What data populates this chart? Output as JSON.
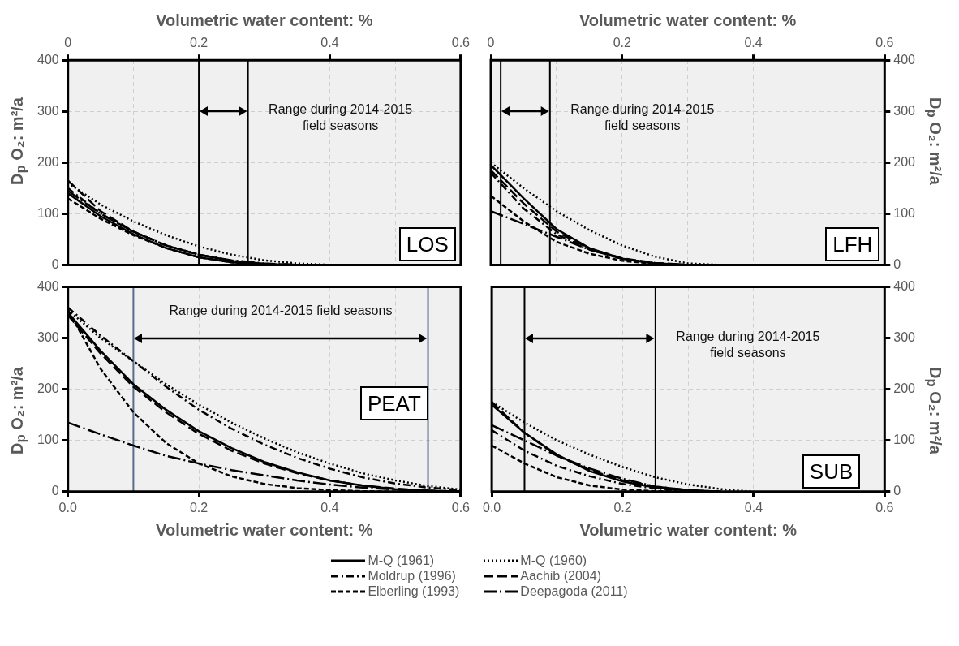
{
  "chart_data": [
    {
      "type": "line",
      "title": "LOS",
      "xlabel": "Volumetric water content: %",
      "ylabel": "D$_{p}$ O₂: m²/a",
      "x": [
        0,
        0.05,
        0.1,
        0.15,
        0.2,
        0.25,
        0.3,
        0.35,
        0.4
      ],
      "xlim": [
        0,
        0.6
      ],
      "xticks": [
        0,
        {
          "value": 0.1,
          "label": null
        },
        0.2,
        {
          "value": 0.3,
          "label": null
        },
        0.4,
        {
          "value": 0.5,
          "label": null
        },
        0.6
      ],
      "ylim": [
        0,
        400
      ],
      "yticks": [
        0,
        100,
        200,
        300,
        400
      ],
      "grid": true,
      "legend": "bottom",
      "ref_lines": [
        {
          "axis": "x",
          "value": 0.2,
          "color": "#000000"
        },
        {
          "axis": "x",
          "value": 0.275,
          "color": "#000000"
        }
      ],
      "annotations": [
        "Range during 2014-2015 field seasons"
      ],
      "series": [
        {
          "name": "M-Q (1961)",
          "color": "#000000",
          "line_style": "solid",
          "values": [
            140,
            95,
            60,
            33,
            15,
            5,
            1,
            0,
            null
          ]
        },
        {
          "name": "M-Q (1960)",
          "color": "#000000",
          "line_style": "dotted",
          "values": [
            160,
            118,
            85,
            58,
            36,
            20,
            9,
            3,
            0
          ]
        },
        {
          "name": "Moldrup (1996)",
          "color": "#000000",
          "line_style": "dashdot",
          "values": [
            150,
            100,
            65,
            38,
            20,
            8,
            2,
            0,
            null
          ]
        },
        {
          "name": "Aachib (2004)",
          "color": "#000000",
          "line_style": "longdash",
          "values": [
            165,
            105,
            65,
            38,
            20,
            8,
            2,
            0,
            null
          ]
        },
        {
          "name": "Elberling (1993)",
          "color": "#000000",
          "line_style": "dashed",
          "values": [
            130,
            90,
            58,
            33,
            15,
            5,
            1,
            0,
            null
          ]
        },
        {
          "name": "Deepagoda (2011)",
          "color": "#000000",
          "line_style": "longdashdot",
          "values": [
            145,
            100,
            65,
            38,
            20,
            9,
            3,
            0,
            null
          ]
        }
      ]
    },
    {
      "type": "line",
      "title": "LFH",
      "xlabel": "Volumetric water content: %",
      "ylabel": "D$_{p}$ O₂: m²/a",
      "x": [
        0,
        0.05,
        0.1,
        0.15,
        0.2,
        0.25,
        0.3,
        0.35
      ],
      "xlim": [
        0,
        0.6
      ],
      "xticks": [
        0,
        {
          "value": 0.1,
          "label": null
        },
        0.2,
        {
          "value": 0.3,
          "label": null
        },
        0.4,
        {
          "value": 0.5,
          "label": null
        },
        0.6
      ],
      "ylim": [
        0,
        400
      ],
      "yticks": [
        0,
        100,
        200,
        300,
        400
      ],
      "grid": true,
      "ref_lines": [
        {
          "axis": "x",
          "value": 0.015,
          "color": "#000000"
        },
        {
          "axis": "x",
          "value": 0.09,
          "color": "#000000"
        }
      ],
      "annotations": [
        "Range during 2014-2015 field seasons"
      ],
      "series": [
        {
          "color": "#000000",
          "line_style": "solid",
          "values": [
            195,
            130,
            70,
            33,
            12,
            3,
            0,
            null
          ]
        },
        {
          "color": "#000000",
          "line_style": "dotted",
          "values": [
            200,
            150,
            105,
            68,
            38,
            16,
            3,
            0
          ]
        },
        {
          "color": "#000000",
          "line_style": "dashdot",
          "values": [
            180,
            110,
            60,
            30,
            12,
            3,
            0,
            null
          ]
        },
        {
          "color": "#000000",
          "line_style": "longdash",
          "values": [
            185,
            120,
            65,
            32,
            13,
            4,
            0,
            null
          ]
        },
        {
          "color": "#000000",
          "line_style": "dashed",
          "values": [
            135,
            85,
            45,
            22,
            8,
            2,
            0,
            null
          ]
        },
        {
          "color": "#000000",
          "line_style": "longdashdot",
          "values": [
            105,
            80,
            55,
            30,
            12,
            3,
            0,
            null
          ]
        }
      ]
    },
    {
      "type": "line",
      "title": "PEAT",
      "xlabel": "Volumetric water content: %",
      "ylabel": "D$_{p}$ O₂: m²/a",
      "x": [
        0,
        0.05,
        0.1,
        0.15,
        0.2,
        0.25,
        0.3,
        0.35,
        0.4,
        0.45,
        0.5,
        0.55,
        0.6
      ],
      "xlim": [
        0,
        0.6
      ],
      "xticks": [
        {
          "value": 0,
          "label": "0.0"
        },
        {
          "value": 0.1,
          "label": null
        },
        0.2,
        {
          "value": 0.3,
          "label": null
        },
        0.4,
        {
          "value": 0.5,
          "label": null
        },
        0.6
      ],
      "ylim": [
        0,
        400
      ],
      "yticks": [
        0,
        100,
        200,
        300,
        400
      ],
      "grid": true,
      "ref_lines": [
        {
          "axis": "x",
          "value": 0.1,
          "color": "#5b6b8c"
        },
        {
          "axis": "x",
          "value": 0.55,
          "color": "#5b6b8c"
        }
      ],
      "annotations": [
        "Range during 2014-2015 field seasons"
      ],
      "series": [
        {
          "color": "#000000",
          "line_style": "solid",
          "values": [
            350,
            275,
            210,
            160,
            118,
            85,
            58,
            38,
            22,
            12,
            5,
            2,
            0
          ]
        },
        {
          "color": "#000000",
          "line_style": "dotted",
          "values": [
            355,
            300,
            255,
            210,
            170,
            135,
            104,
            77,
            55,
            36,
            22,
            11,
            4
          ]
        },
        {
          "color": "#000000",
          "line_style": "dashdot",
          "values": [
            360,
            305,
            255,
            205,
            160,
            123,
            92,
            66,
            45,
            28,
            16,
            8,
            3
          ]
        },
        {
          "color": "#000000",
          "line_style": "longdash",
          "values": [
            345,
            270,
            205,
            155,
            113,
            80,
            55,
            36,
            22,
            12,
            6,
            2,
            0
          ]
        },
        {
          "color": "#000000",
          "line_style": "dashed",
          "values": [
            355,
            240,
            155,
            95,
            55,
            30,
            15,
            7,
            3,
            1,
            0,
            0,
            0
          ]
        },
        {
          "color": "#000000",
          "line_style": "longdashdot",
          "values": [
            135,
            112,
            90,
            70,
            55,
            42,
            32,
            22,
            14,
            8,
            4,
            1,
            0
          ]
        }
      ]
    },
    {
      "type": "line",
      "title": "SUB",
      "xlabel": "Volumetric water content: %",
      "ylabel": "D$_{p}$ O₂: m²/a",
      "x": [
        0,
        0.05,
        0.1,
        0.15,
        0.2,
        0.25,
        0.3,
        0.35,
        0.4
      ],
      "xlim": [
        0,
        0.6
      ],
      "xticks": [
        {
          "value": 0,
          "label": "0.0"
        },
        {
          "value": 0.1,
          "label": null
        },
        0.2,
        {
          "value": 0.3,
          "label": null
        },
        0.4,
        {
          "value": 0.5,
          "label": null
        },
        0.6
      ],
      "ylim": [
        0,
        400
      ],
      "yticks": [
        0,
        100,
        200,
        300,
        400
      ],
      "grid": true,
      "ref_lines": [
        {
          "axis": "x",
          "value": 0.05,
          "color": "#000000"
        },
        {
          "axis": "x",
          "value": 0.25,
          "color": "#000000"
        }
      ],
      "annotations": [
        "Range during 2014-2015 field seasons"
      ],
      "series": [
        {
          "color": "#000000",
          "line_style": "solid",
          "values": [
            170,
            115,
            72,
            40,
            20,
            8,
            2,
            0,
            null
          ]
        },
        {
          "color": "#000000",
          "line_style": "dotted",
          "values": [
            175,
            135,
            100,
            72,
            48,
            28,
            14,
            5,
            0
          ]
        },
        {
          "color": "#000000",
          "line_style": "dashdot",
          "values": [
            120,
            80,
            50,
            30,
            15,
            6,
            1,
            0,
            null
          ]
        },
        {
          "color": "#000000",
          "line_style": "longdash",
          "values": [
            175,
            115,
            70,
            42,
            22,
            10,
            3,
            0,
            null
          ]
        },
        {
          "color": "#000000",
          "line_style": "dashed",
          "values": [
            90,
            55,
            28,
            12,
            4,
            1,
            0,
            null,
            null
          ]
        },
        {
          "color": "#000000",
          "line_style": "longdashdot",
          "values": [
            130,
            100,
            70,
            45,
            25,
            10,
            3,
            0,
            null
          ]
        }
      ]
    }
  ]
}
